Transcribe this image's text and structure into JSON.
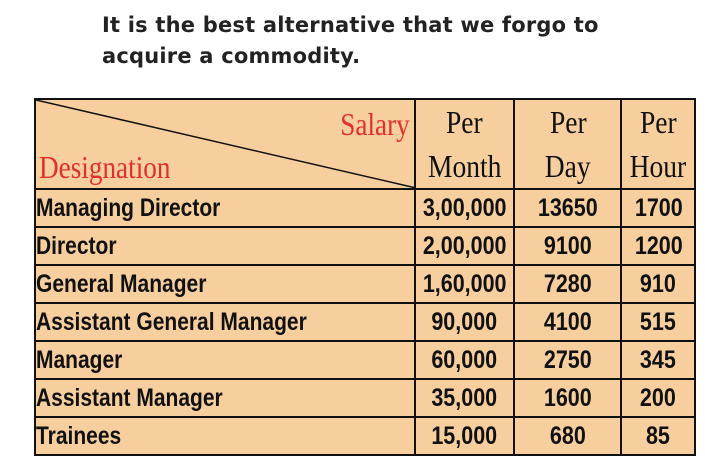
{
  "intro": {
    "line1": "It is the best alternative that we forgo to",
    "line2": "acquire a commodity."
  },
  "table": {
    "corner_top": "Salary",
    "corner_bottom": "Designation",
    "columns": [
      {
        "line1": "Per",
        "line2": "Month"
      },
      {
        "line1": "Per",
        "line2": "Day"
      },
      {
        "line1": "Per",
        "line2": "Hour"
      }
    ],
    "rows": [
      {
        "designation": "Managing Director",
        "month": "3,00,000",
        "day": "13650",
        "hour": "1700"
      },
      {
        "designation": "Director",
        "month": "2,00,000",
        "day": "9100",
        "hour": "1200"
      },
      {
        "designation": "General Manager",
        "month": "1,60,000",
        "day": "7280",
        "hour": "910"
      },
      {
        "designation": "Assistant General Manager",
        "month": "90,000",
        "day": "4100",
        "hour": "515"
      },
      {
        "designation": "Manager",
        "month": "60,000",
        "day": "2750",
        "hour": "345"
      },
      {
        "designation": "Assistant Manager",
        "month": "35,000",
        "day": "1600",
        "hour": "200"
      },
      {
        "designation": "Trainees",
        "month": "15,000",
        "day": "680",
        "hour": "85"
      }
    ]
  },
  "colors": {
    "table_fill": "#f7cf9f",
    "header_text": "#e0302e",
    "body_text": "#111111"
  }
}
